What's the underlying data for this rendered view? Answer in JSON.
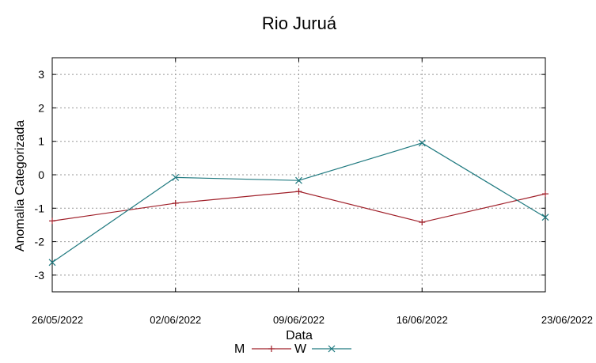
{
  "chart_data": {
    "type": "line",
    "title": "Rio Juruá",
    "xlabel": "Data",
    "ylabel": "Anomalia Categorizada",
    "categories": [
      "26/05/2022",
      "02/06/2022",
      "09/06/2022",
      "16/06/2022",
      "23/06/2022"
    ],
    "ylim": [
      -3.5,
      3.5
    ],
    "yticks": [
      -3,
      -2,
      -1,
      0,
      1,
      2,
      3
    ],
    "grid": true,
    "legend_position": "bottom-center",
    "series": [
      {
        "name": "M",
        "color": "#a0202a",
        "marker": "plus",
        "values": [
          -1.38,
          -0.85,
          -0.5,
          -1.42,
          -0.57
        ]
      },
      {
        "name": "W",
        "color": "#207a80",
        "marker": "cross",
        "values": [
          -2.62,
          -0.08,
          -0.17,
          0.95,
          -1.27
        ]
      }
    ]
  }
}
